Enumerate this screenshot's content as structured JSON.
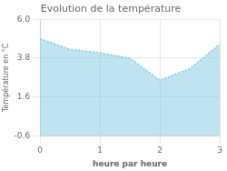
{
  "chart_data": {
    "type": "area",
    "title": "Evolution de la température",
    "xlabel": "heure par heure",
    "ylabel": "Température en °C",
    "x": [
      0,
      0.5,
      1,
      1.5,
      2,
      2.5,
      3
    ],
    "values": [
      4.9,
      4.3,
      4.1,
      3.8,
      2.55,
      3.2,
      4.6
    ],
    "color": "#7ec8e3",
    "line_style": "dotted",
    "xlim": [
      0,
      3
    ],
    "xticks": [
      0,
      1,
      2,
      3
    ],
    "ylim": [
      -0.6,
      6.0
    ],
    "yticks": [
      -0.6,
      1.6,
      3.8,
      {
        "value": 6.0,
        "label": "6.0"
      }
    ],
    "grid": true
  }
}
